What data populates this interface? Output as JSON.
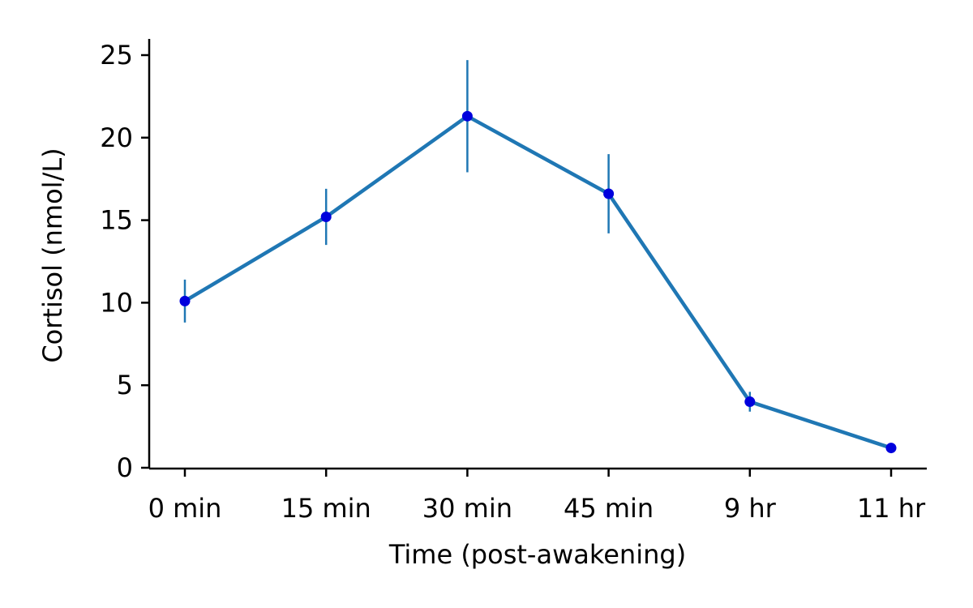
{
  "colors": {
    "line": "#1f77b4",
    "marker": "#0000dd",
    "errorbar": "#1f77b4",
    "axis": "#000000",
    "background": "#ffffff"
  },
  "chart_data": {
    "type": "line",
    "title": "",
    "xlabel": "Time (post-awakening)",
    "ylabel": "Cortisol (nmol/L)",
    "categories": [
      "0 min",
      "15 min",
      "30 min",
      "45 min",
      "9 hr",
      "11 hr"
    ],
    "series": [
      {
        "values": [
          10.1,
          15.2,
          21.3,
          16.6,
          4.0,
          1.2
        ],
        "error": [
          1.3,
          1.7,
          3.4,
          2.4,
          0.6,
          0.0
        ]
      }
    ],
    "ylim": [
      0,
      26
    ],
    "yticks": [
      0,
      5,
      10,
      15,
      20,
      25
    ],
    "grid": false,
    "legend": "none"
  }
}
